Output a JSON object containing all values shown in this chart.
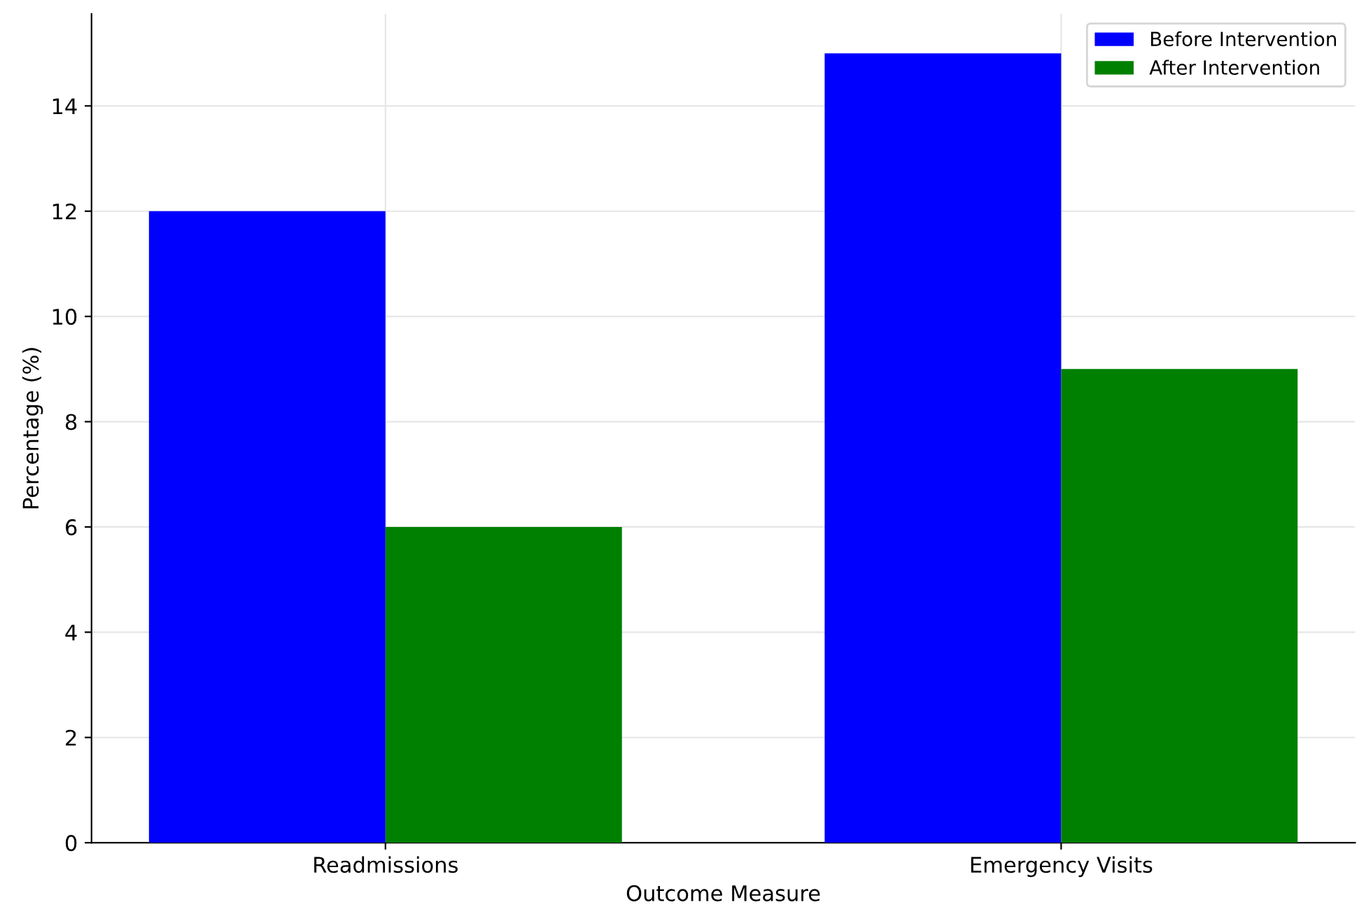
{
  "chart_data": {
    "type": "bar",
    "xlabel": "Outcome Measure",
    "ylabel": "Percentage (%)",
    "categories": [
      "Readmissions",
      "Emergency Visits"
    ],
    "series": [
      {
        "name": "Before Intervention",
        "color": "#0000ff",
        "values": [
          12,
          15
        ]
      },
      {
        "name": "After Intervention",
        "color": "#008000",
        "values": [
          6,
          9
        ]
      }
    ],
    "ylim": [
      0,
      15.75
    ],
    "yticks": [
      0,
      2,
      4,
      6,
      8,
      10,
      12,
      14
    ],
    "grid": true,
    "legend": "top right"
  }
}
